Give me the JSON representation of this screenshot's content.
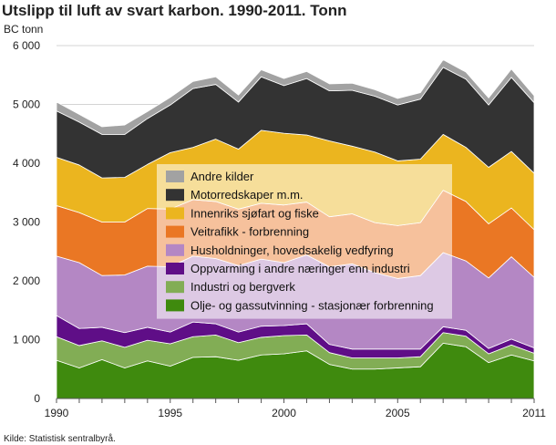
{
  "chart_data": {
    "type": "area",
    "stacked": true,
    "title": "Utslipp til luft av svart karbon. 1990-2011. Tonn",
    "ylabel": "BC tonn",
    "source": "Kilde: Statistisk sentralbyrå.",
    "x": [
      1990,
      1991,
      1992,
      1993,
      1994,
      1995,
      1996,
      1997,
      1998,
      1999,
      2000,
      2001,
      2002,
      2003,
      2004,
      2005,
      2006,
      2007,
      2008,
      2009,
      2010,
      2011
    ],
    "x_tick_labels": [
      "1990",
      "1995",
      "2000",
      "2005",
      "2011"
    ],
    "x_ticks": [
      1990,
      1995,
      2000,
      2005,
      2011
    ],
    "y_ticks": [
      0,
      1000,
      2000,
      3000,
      4000,
      5000,
      6000
    ],
    "y_tick_labels": [
      "0",
      "1 000",
      "2 000",
      "3 000",
      "4 000",
      "5 000",
      "6 000"
    ],
    "ylim": [
      0,
      6000
    ],
    "grid": true,
    "legend_position": "center-overlay",
    "series": [
      {
        "name": "Olje- og gassutvinning - stasjonær forbrenning",
        "color": "#3f8a0e",
        "values": [
          650,
          520,
          660,
          520,
          640,
          550,
          700,
          710,
          650,
          740,
          760,
          810,
          580,
          500,
          500,
          520,
          540,
          940,
          880,
          610,
          740,
          640
        ]
      },
      {
        "name": "Industri og bergverk",
        "color": "#82ad55",
        "values": [
          400,
          380,
          320,
          350,
          350,
          380,
          350,
          370,
          300,
          300,
          310,
          270,
          200,
          190,
          190,
          170,
          170,
          180,
          180,
          150,
          170,
          130
        ]
      },
      {
        "name": "Oppvarming i andre næringer enn industri",
        "color": "#5f0e87",
        "values": [
          360,
          290,
          230,
          250,
          220,
          200,
          250,
          190,
          180,
          190,
          170,
          190,
          140,
          150,
          150,
          150,
          130,
          100,
          100,
          90,
          100,
          90
        ]
      },
      {
        "name": "Husholdninger, hovedsakelig vedfyring",
        "color": "#b487c4",
        "values": [
          1010,
          1120,
          880,
          980,
          1040,
          1110,
          1120,
          1110,
          1130,
          1140,
          1070,
          1170,
          1320,
          1450,
          1300,
          1200,
          1250,
          1260,
          1180,
          1200,
          1400,
          1200
        ]
      },
      {
        "name": "Veitrafikk - forbrenning",
        "color": "#ea7724",
        "values": [
          860,
          850,
          910,
          900,
          980,
          980,
          960,
          970,
          960,
          950,
          980,
          900,
          850,
          850,
          850,
          900,
          900,
          1060,
          1010,
          920,
          830,
          810
        ]
      },
      {
        "name": "Innenriks sjøfart og fiske",
        "color": "#ebb51f",
        "values": [
          820,
          810,
          750,
          760,
          750,
          960,
          890,
          1060,
          1020,
          1240,
          1220,
          1140,
          1290,
          1150,
          1200,
          1100,
          1080,
          950,
          920,
          960,
          960,
          960
        ]
      },
      {
        "name": "Motorredskaper m.m.",
        "color": "#333333",
        "values": [
          790,
          730,
          740,
          730,
          780,
          810,
          1000,
          930,
          800,
          910,
          810,
          960,
          850,
          950,
          950,
          950,
          1020,
          1140,
          1160,
          1060,
          1260,
          1200
        ]
      },
      {
        "name": "Andre kilder",
        "color": "#a2a2a2",
        "values": [
          150,
          130,
          130,
          160,
          120,
          130,
          120,
          130,
          120,
          120,
          120,
          120,
          120,
          120,
          110,
          110,
          110,
          130,
          120,
          120,
          140,
          120
        ]
      }
    ]
  }
}
